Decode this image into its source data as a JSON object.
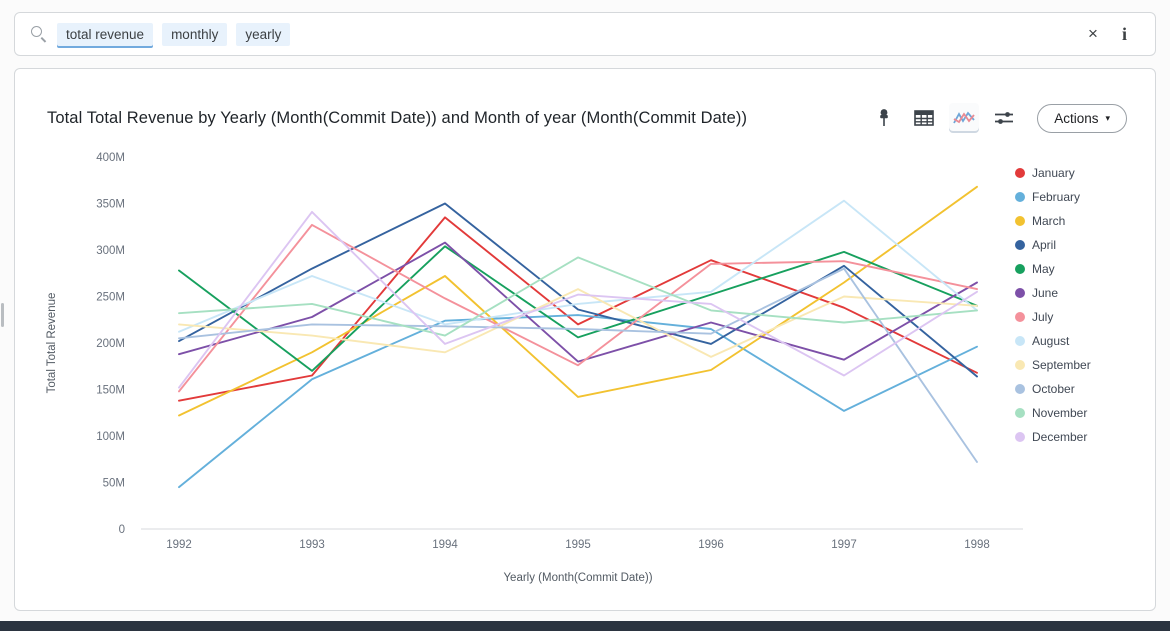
{
  "search_bar": {
    "tokens": [
      "total revenue",
      "monthly",
      "yearly"
    ],
    "clear_label": "×",
    "info_label": "i"
  },
  "card": {
    "title": "Total Total Revenue by Yearly (Month(Commit Date)) and Month of year (Month(Commit Date))",
    "actions_label": "Actions",
    "actions_caret": "▾",
    "toolbar_icons": [
      "pin-icon",
      "table-icon",
      "line-chart-icon",
      "settings-sliders-icon"
    ]
  },
  "chart_data": {
    "type": "line",
    "title": "Total Total Revenue by Yearly (Month(Commit Date)) and Month of year (Month(Commit Date))",
    "x": [
      1992,
      1993,
      1994,
      1995,
      1996,
      1997,
      1998
    ],
    "xlabel": "Yearly (Month(Commit Date))",
    "ylabel": "Total Total Revenue",
    "value_unit": "millions",
    "ylim_millions": [
      0,
      400
    ],
    "ytick_step_millions": 50,
    "ytick_labels": [
      "0",
      "50M",
      "100M",
      "150M",
      "200M",
      "250M",
      "300M",
      "350M",
      "400M"
    ],
    "grid": false,
    "legend_position": "right",
    "series": [
      {
        "name": "January",
        "color": "#e23a3a",
        "values": [
          138,
          165,
          335,
          220,
          289,
          238,
          168
        ]
      },
      {
        "name": "February",
        "color": "#64b0db",
        "values": [
          45,
          161,
          224,
          230,
          215,
          127,
          196
        ]
      },
      {
        "name": "March",
        "color": "#f2c230",
        "values": [
          122,
          190,
          272,
          142,
          171,
          265,
          368
        ]
      },
      {
        "name": "April",
        "color": "#35639f",
        "values": [
          202,
          280,
          350,
          236,
          199,
          283,
          164
        ]
      },
      {
        "name": "May",
        "color": "#17a05e",
        "values": [
          278,
          170,
          304,
          206,
          252,
          298,
          240
        ]
      },
      {
        "name": "June",
        "color": "#7d50a8",
        "values": [
          188,
          228,
          308,
          180,
          222,
          182,
          265
        ]
      },
      {
        "name": "July",
        "color": "#f4919b",
        "values": [
          148,
          327,
          248,
          176,
          285,
          288,
          258
        ]
      },
      {
        "name": "August",
        "color": "#c8e6f7",
        "values": [
          212,
          272,
          220,
          242,
          255,
          353,
          235
        ]
      },
      {
        "name": "September",
        "color": "#f9e8b3",
        "values": [
          220,
          208,
          190,
          258,
          185,
          250,
          240
        ]
      },
      {
        "name": "October",
        "color": "#a9c2e0",
        "values": [
          205,
          220,
          218,
          215,
          210,
          280,
          72
        ]
      },
      {
        "name": "November",
        "color": "#a6e0c2",
        "values": [
          232,
          242,
          208,
          292,
          235,
          222,
          235
        ]
      },
      {
        "name": "December",
        "color": "#dcc5f2",
        "values": [
          152,
          341,
          199,
          252,
          242,
          165,
          255
        ]
      }
    ]
  }
}
